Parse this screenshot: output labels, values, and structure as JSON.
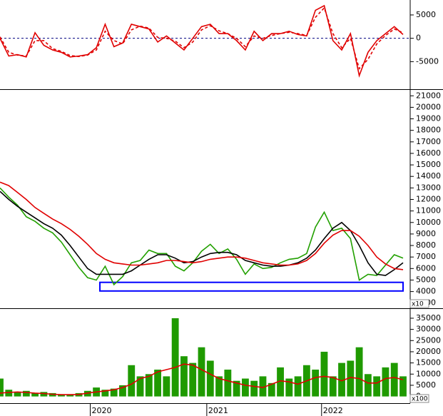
{
  "chart_data": [
    {
      "type": "line",
      "ylim": [
        -10900,
        8200
      ],
      "yticks": [
        -5000,
        0,
        5000
      ],
      "zero_line": true,
      "series": [
        {
          "color": "#e00000",
          "dash": false,
          "values": [
            0,
            -3800,
            -3500,
            -4000,
            1200,
            -1500,
            -2500,
            -3000,
            -4000,
            -3800,
            -3500,
            -2000,
            3000,
            -1800,
            -1000,
            3000,
            2500,
            2000,
            -800,
            500,
            -1000,
            -2500,
            0,
            2500,
            3000,
            1000,
            1000,
            -500,
            -2500,
            1500,
            -500,
            1000,
            1000,
            1500,
            800,
            500,
            6000,
            7000,
            -500,
            -2500,
            1000,
            -8000,
            -3000,
            -500,
            1000,
            2500,
            800
          ]
        },
        {
          "color": "#e00000",
          "dash": true,
          "values": [
            300,
            -3000,
            -3600,
            -3800,
            -500,
            -500,
            -2200,
            -2800,
            -3700,
            -3900,
            -3600,
            -2500,
            1500,
            -500,
            -1200,
            1800,
            2600,
            2200,
            200,
            0,
            -600,
            -2000,
            -800,
            1800,
            2700,
            1600,
            1000,
            0,
            -1800,
            500,
            0,
            600,
            1000,
            1300,
            1000,
            600,
            4500,
            6500,
            1000,
            -2000,
            0,
            -6500,
            -4500,
            -1200,
            600,
            2000,
            1200
          ]
        }
      ]
    },
    {
      "type": "line",
      "ylim": [
        2550,
        21450
      ],
      "yticks": [
        3000,
        4000,
        5000,
        6000,
        7000,
        8000,
        9000,
        10000,
        11000,
        12000,
        13000,
        14000,
        15000,
        16000,
        17000,
        18000,
        19000,
        20000,
        21000
      ],
      "multiplier_label": "x10",
      "zone": {
        "x": [
          11.4,
          46
        ],
        "y": [
          4050,
          4800
        ],
        "color": "#0000ff"
      },
      "series": [
        {
          "color": "#22a000",
          "dash": false,
          "values": [
            13000,
            12200,
            11500,
            10500,
            10100,
            9500,
            9100,
            8300,
            7200,
            6100,
            5200,
            5000,
            6200,
            4600,
            5300,
            6500,
            6700,
            7600,
            7300,
            7300,
            6200,
            5800,
            6500,
            7500,
            8100,
            7300,
            7700,
            6800,
            5500,
            6400,
            6000,
            6100,
            6500,
            6800,
            6900,
            7300,
            9600,
            10900,
            9300,
            9500,
            8600,
            5000,
            5500,
            5400,
            6300,
            7200,
            6900
          ]
        },
        {
          "color": "#000000",
          "dash": false,
          "values": [
            12700,
            12000,
            11400,
            10900,
            10400,
            9900,
            9500,
            8900,
            8000,
            7000,
            6000,
            5500,
            5500,
            5500,
            5500,
            5800,
            6300,
            6800,
            7200,
            7200,
            6900,
            6500,
            6600,
            7000,
            7300,
            7400,
            7400,
            7200,
            6700,
            6500,
            6300,
            6200,
            6200,
            6300,
            6500,
            6900,
            7600,
            8600,
            9500,
            10000,
            9300,
            8000,
            6500,
            5500,
            5400,
            5900,
            6500
          ]
        },
        {
          "color": "#e00000",
          "dash": false,
          "values": [
            13500,
            13200,
            12600,
            12000,
            11300,
            10800,
            10300,
            9900,
            9400,
            8800,
            8100,
            7300,
            6800,
            6500,
            6400,
            6300,
            6300,
            6400,
            6500,
            6700,
            6700,
            6600,
            6500,
            6600,
            6800,
            6900,
            7000,
            7000,
            6900,
            6700,
            6500,
            6400,
            6300,
            6300,
            6400,
            6700,
            7300,
            8200,
            8900,
            9300,
            9300,
            8800,
            8000,
            7000,
            6400,
            6000,
            5900
          ]
        }
      ]
    },
    {
      "type": "bar",
      "ylim": [
        -3000,
        38500
      ],
      "yticks": [
        0,
        5000,
        10000,
        15000,
        20000,
        25000,
        30000,
        35000
      ],
      "multiplier_label": "x100",
      "xlim": [
        0,
        46
      ],
      "xticks": [
        {
          "value": 10.3,
          "label": "2020"
        },
        {
          "value": 23.6,
          "label": "2021"
        },
        {
          "value": 36.7,
          "label": "2022"
        }
      ],
      "series": [
        {
          "kind": "bar",
          "color": "#1f9a00",
          "values": [
            8000,
            3000,
            2000,
            2500,
            1500,
            2000,
            1500,
            1000,
            1000,
            1500,
            2500,
            4000,
            3000,
            3500,
            5000,
            14000,
            9000,
            10000,
            12000,
            9000,
            35000,
            18000,
            15000,
            22000,
            16000,
            9000,
            12000,
            7000,
            8000,
            7000,
            9000,
            6000,
            13000,
            8000,
            9000,
            14000,
            12000,
            20000,
            9000,
            15000,
            16000,
            22000,
            10000,
            9000,
            13000,
            15000,
            9000
          ]
        },
        {
          "kind": "line",
          "color": "#e00000",
          "values": [
            1500,
            1800,
            2000,
            1800,
            1500,
            1300,
            1000,
            800,
            800,
            900,
            1500,
            2000,
            2500,
            3000,
            4000,
            5500,
            8000,
            9000,
            11000,
            12000,
            13000,
            14500,
            14000,
            12000,
            10000,
            8000,
            7000,
            6000,
            5000,
            4500,
            4000,
            5500,
            7000,
            6500,
            5500,
            7000,
            8500,
            9000,
            8500,
            7000,
            8500,
            8000,
            6000,
            6000,
            8000,
            8500,
            7500
          ]
        }
      ]
    }
  ]
}
